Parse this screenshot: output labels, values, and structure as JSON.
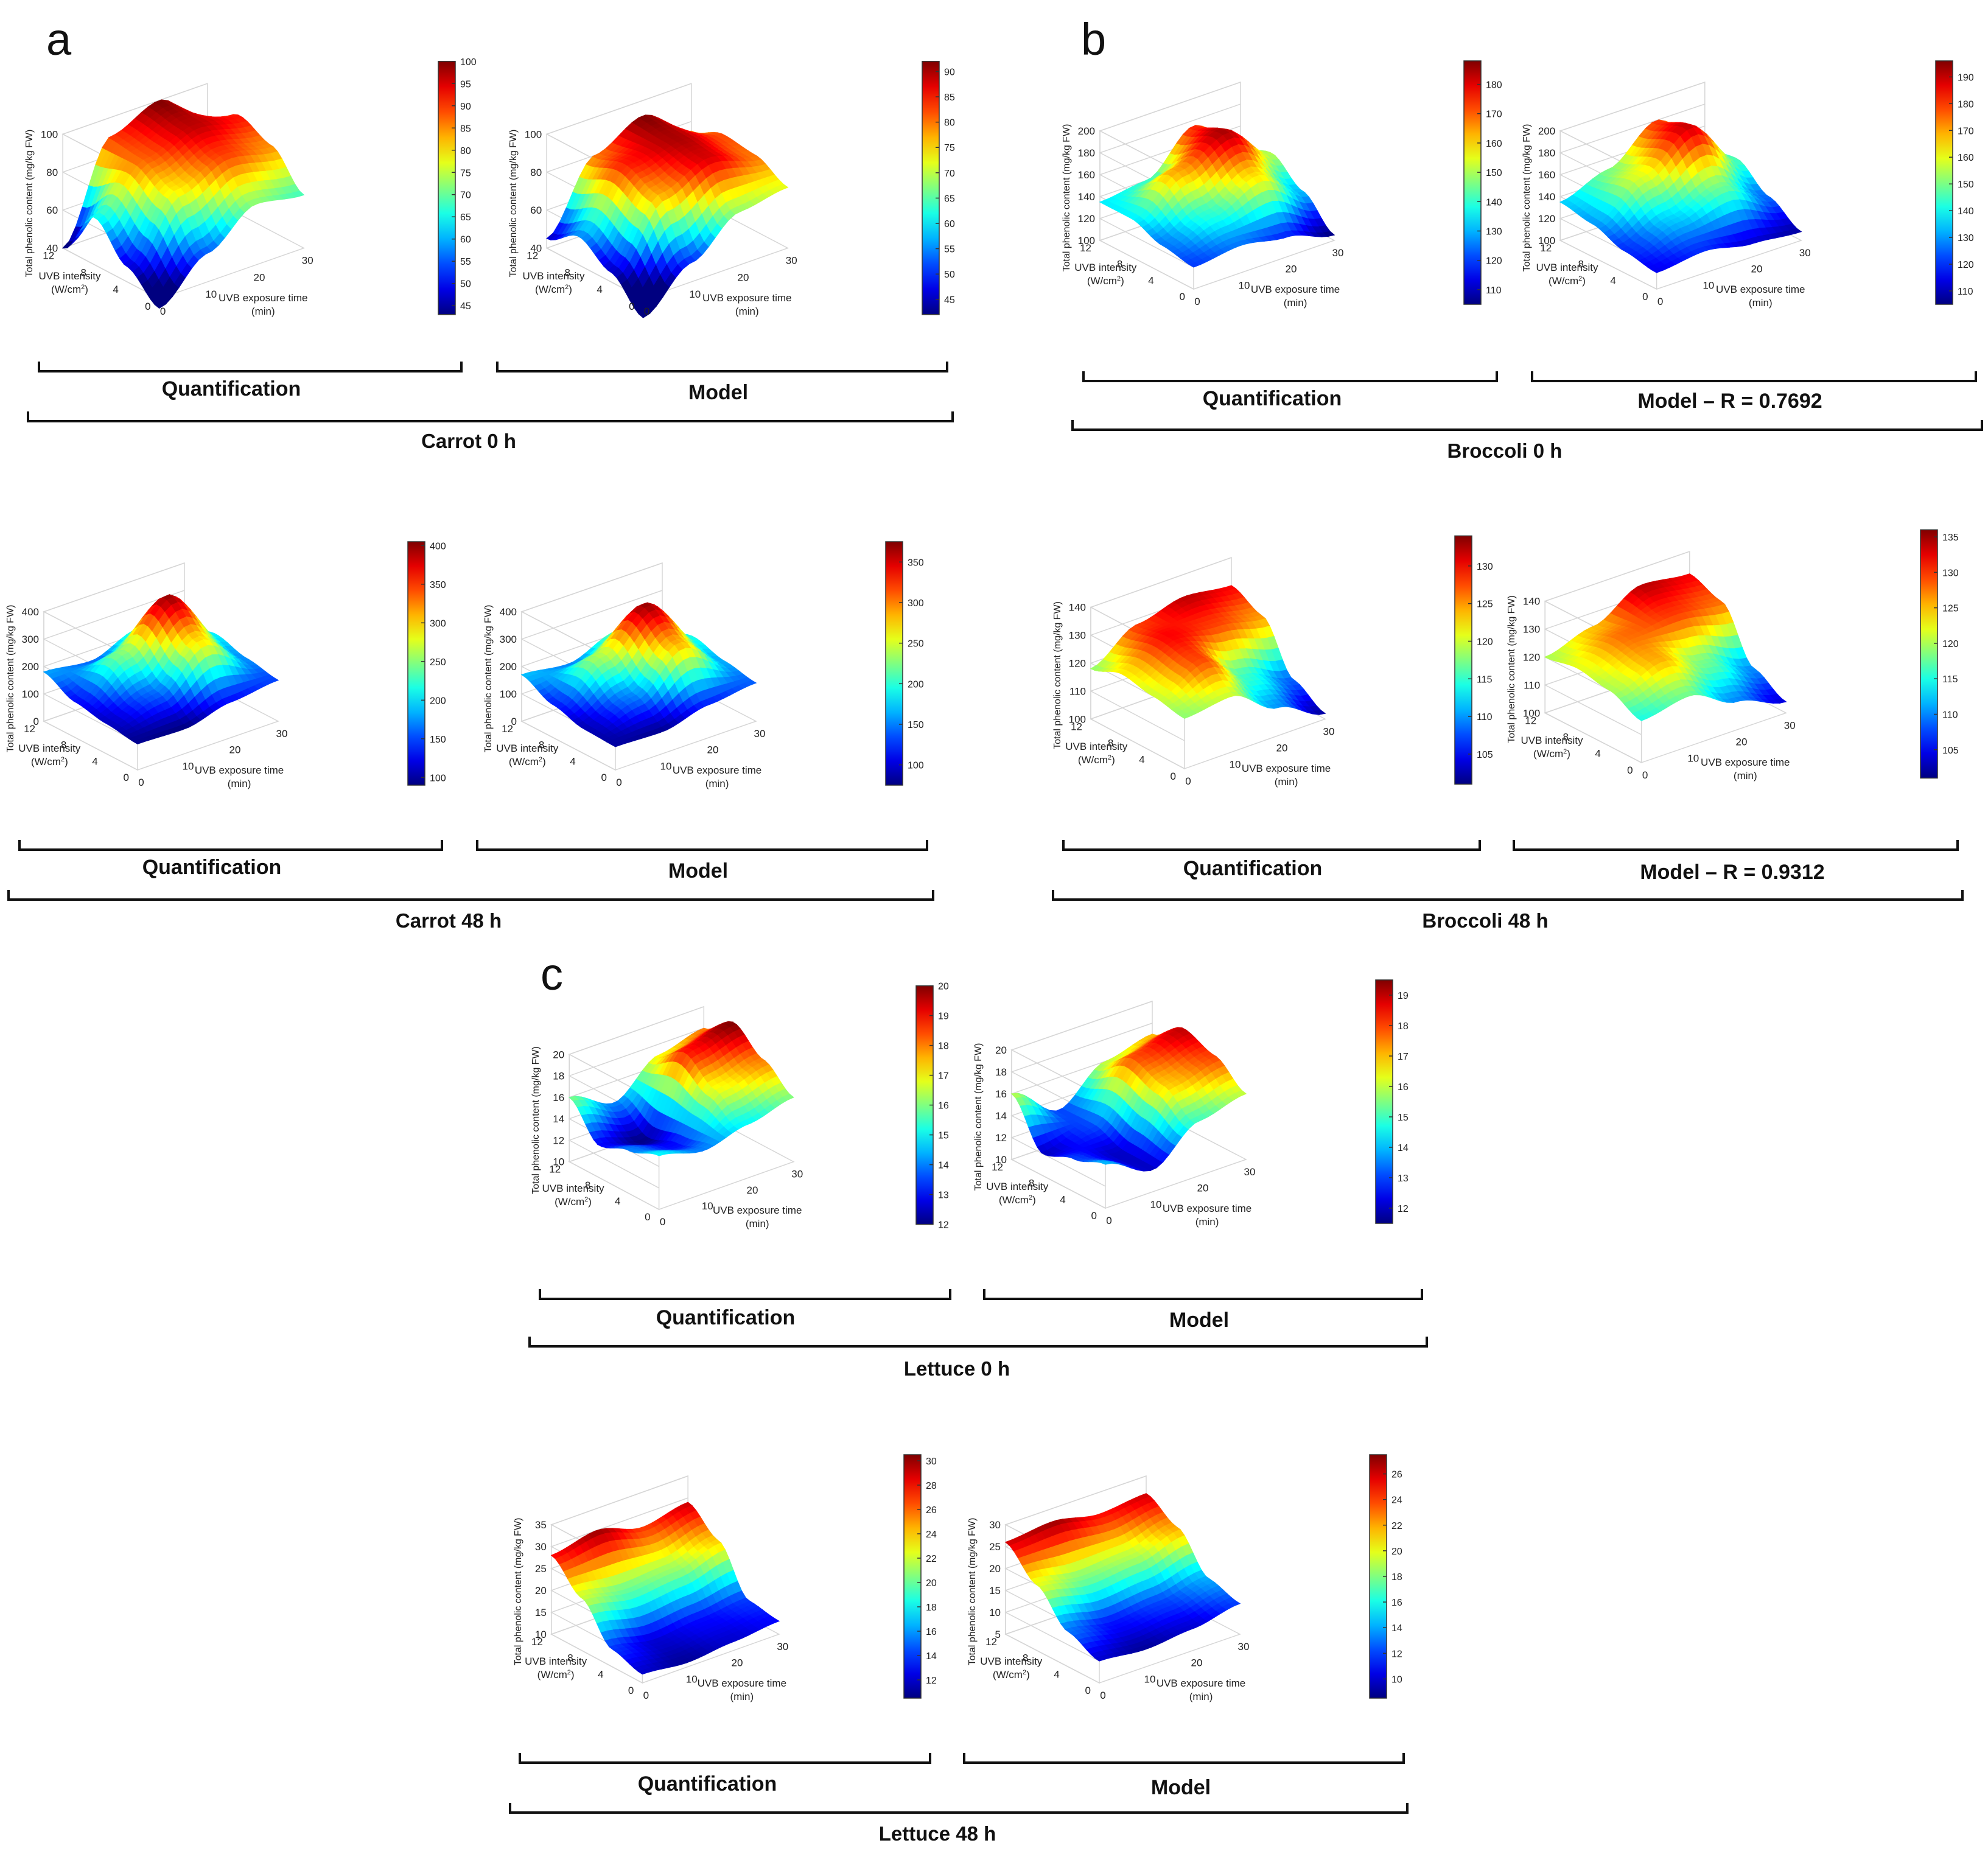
{
  "panels": {
    "a": "a",
    "b": "b",
    "c": "c"
  },
  "common_axes": {
    "zlabel": "Total phenolic content (mg/kg FW)",
    "ylabel_line1": "UVB intensity",
    "ylabel_line2": "(W/cm",
    "ylabel_sup": "2",
    "ylabel_close": ")",
    "xlabel_line1": "UVB exposure time",
    "xlabel_line2": "(min)",
    "x_ticks": [
      "0",
      "10",
      "20",
      "30"
    ],
    "y_ticks": [
      "0",
      "4",
      "8",
      "12"
    ]
  },
  "groups": [
    {
      "id": "carrot-0",
      "label": "Carrot 0 h"
    },
    {
      "id": "carrot-48",
      "label": "Carrot 48 h"
    },
    {
      "id": "broccoli-0",
      "label": "Broccoli 0 h"
    },
    {
      "id": "broccoli-48",
      "label": "Broccoli 48 h"
    },
    {
      "id": "lettuce-0",
      "label": "Lettuce 0 h"
    },
    {
      "id": "lettuce-48",
      "label": "Lettuce 48 h"
    }
  ],
  "chart_data": [
    {
      "id": "carrot-0-quant",
      "type": "surface",
      "title": "Quantification",
      "group": "Carrot 0 h",
      "xlabel": "UVB exposure time (min)",
      "ylabel": "UVB intensity (W/cm2)",
      "zlabel": "Total phenolic content (mg/kg FW)",
      "x": [
        0,
        10,
        20,
        30
      ],
      "y": [
        0,
        4,
        8,
        12
      ],
      "z": [
        [
          35,
          55,
          72,
          68
        ],
        [
          48,
          80,
          90,
          85
        ],
        [
          65,
          88,
          97,
          92
        ],
        [
          40,
          90,
          100,
          80
        ]
      ],
      "zlim": [
        40,
        100
      ],
      "z_ticks": [
        "40",
        "60",
        "80",
        "100"
      ],
      "colorbar_ticks": [
        "45",
        "50",
        "55",
        "60",
        "65",
        "70",
        "75",
        "80",
        "85",
        "90",
        "95",
        "100"
      ],
      "colorbar_range": [
        43,
        100
      ]
    },
    {
      "id": "carrot-0-model",
      "type": "surface",
      "title": "Model",
      "group": "Carrot 0 h",
      "xlabel": "UVB exposure time (min)",
      "ylabel": "UVB intensity (W/cm2)",
      "zlabel": "Total phenolic content (mg/kg FW)",
      "x": [
        0,
        10,
        20,
        30
      ],
      "y": [
        0,
        4,
        8,
        12
      ],
      "z": [
        [
          30,
          50,
          68,
          72
        ],
        [
          45,
          78,
          88,
          80
        ],
        [
          55,
          85,
          90,
          82
        ],
        [
          45,
          80,
          92,
          75
        ]
      ],
      "zlim": [
        40,
        100
      ],
      "z_ticks": [
        "40",
        "60",
        "80",
        "100"
      ],
      "colorbar_ticks": [
        "45",
        "50",
        "55",
        "60",
        "65",
        "70",
        "75",
        "80",
        "85",
        "90"
      ],
      "colorbar_range": [
        42,
        92
      ]
    },
    {
      "id": "carrot-48-quant",
      "type": "surface",
      "title": "Quantification",
      "group": "Carrot 48 h",
      "xlabel": "UVB exposure time (min)",
      "ylabel": "UVB intensity (W/cm2)",
      "zlabel": "Total phenolic content (mg/kg FW)",
      "x": [
        0,
        10,
        20,
        30
      ],
      "y": [
        0,
        4,
        8,
        12
      ],
      "z": [
        [
          95,
          90,
          130,
          150
        ],
        [
          110,
          160,
          300,
          170
        ],
        [
          130,
          250,
          400,
          200
        ],
        [
          180,
          160,
          220,
          160
        ]
      ],
      "zlim": [
        0,
        400
      ],
      "z_ticks": [
        "0",
        "100",
        "200",
        "300",
        "400"
      ],
      "colorbar_ticks": [
        "100",
        "150",
        "200",
        "250",
        "300",
        "350",
        "400"
      ],
      "colorbar_range": [
        90,
        405
      ]
    },
    {
      "id": "carrot-48-model",
      "type": "surface",
      "title": "Model",
      "group": "Carrot 48 h",
      "xlabel": "UVB exposure time (min)",
      "ylabel": "UVB intensity (W/cm2)",
      "zlabel": "Total phenolic content (mg/kg FW)",
      "x": [
        0,
        10,
        20,
        30
      ],
      "y": [
        0,
        4,
        8,
        12
      ],
      "z": [
        [
          85,
          80,
          120,
          140
        ],
        [
          90,
          150,
          290,
          160
        ],
        [
          120,
          240,
          370,
          190
        ],
        [
          170,
          150,
          210,
          150
        ]
      ],
      "zlim": [
        0,
        400
      ],
      "z_ticks": [
        "0",
        "100",
        "200",
        "300",
        "400"
      ],
      "colorbar_ticks": [
        "100",
        "150",
        "200",
        "250",
        "300",
        "350"
      ],
      "colorbar_range": [
        75,
        375
      ]
    },
    {
      "id": "broccoli-0-quant",
      "type": "surface",
      "title": "Quantification",
      "group": "Broccoli 0 h",
      "xlabel": "UVB exposure time (min)",
      "ylabel": "UVB intensity (W/cm2)",
      "zlabel": "Total phenolic content (mg/kg FW)",
      "x": [
        0,
        10,
        20,
        30
      ],
      "y": [
        0,
        4,
        8,
        12
      ],
      "z": [
        [
          120,
          125,
          118,
          105
        ],
        [
          125,
          140,
          160,
          130
        ],
        [
          135,
          165,
          185,
          150
        ],
        [
          135,
          140,
          175,
          140
        ]
      ],
      "zlim": [
        100,
        200
      ],
      "z_ticks": [
        "100",
        "120",
        "140",
        "160",
        "180",
        "200"
      ],
      "colorbar_ticks": [
        "110",
        "120",
        "130",
        "140",
        "150",
        "160",
        "170",
        "180"
      ],
      "colorbar_range": [
        105,
        188
      ]
    },
    {
      "id": "broccoli-0-model",
      "type": "surface",
      "title": "Model – R  = 0.7692",
      "group": "Broccoli 0 h",
      "xlabel": "UVB exposure time (min)",
      "ylabel": "UVB intensity (W/cm2)",
      "zlabel": "Total phenolic content (mg/kg FW)",
      "x": [
        0,
        10,
        20,
        30
      ],
      "y": [
        0,
        4,
        8,
        12
      ],
      "z": [
        [
          115,
          120,
          112,
          108
        ],
        [
          120,
          135,
          150,
          125
        ],
        [
          130,
          160,
          190,
          145
        ],
        [
          135,
          150,
          180,
          140
        ]
      ],
      "zlim": [
        100,
        200
      ],
      "z_ticks": [
        "100",
        "120",
        "140",
        "160",
        "180",
        "200"
      ],
      "colorbar_ticks": [
        "110",
        "120",
        "130",
        "140",
        "150",
        "160",
        "170",
        "180",
        "190"
      ],
      "colorbar_range": [
        105,
        196
      ]
    },
    {
      "id": "broccoli-48-quant",
      "type": "surface",
      "title": "Quantification",
      "group": "Broccoli 48 h",
      "xlabel": "UVB exposure time (min)",
      "ylabel": "UVB intensity (W/cm2)",
      "zlabel": "Total phenolic content (mg/kg FW)",
      "x": [
        0,
        10,
        20,
        30
      ],
      "y": [
        0,
        4,
        8,
        12
      ],
      "z": [
        [
          118,
          120,
          110,
          102
        ],
        [
          120,
          128,
          115,
          108
        ],
        [
          122,
          130,
          128,
          125
        ],
        [
          118,
          128,
          132,
          130
        ]
      ],
      "zlim": [
        100,
        140
      ],
      "z_ticks": [
        "100",
        "110",
        "120",
        "130",
        "140"
      ],
      "colorbar_ticks": [
        "105",
        "110",
        "115",
        "120",
        "125",
        "130"
      ],
      "colorbar_range": [
        101,
        134
      ]
    },
    {
      "id": "broccoli-48-model",
      "type": "surface",
      "title": "Model – R  = 0.9312",
      "group": "Broccoli 48 h",
      "xlabel": "UVB exposure time (min)",
      "ylabel": "UVB intensity (W/cm2)",
      "zlabel": "Total phenolic content (mg/kg FW)",
      "x": [
        0,
        10,
        20,
        30
      ],
      "y": [
        0,
        4,
        8,
        12
      ],
      "z": [
        [
          115,
          118,
          110,
          104
        ],
        [
          120,
          126,
          118,
          110
        ],
        [
          122,
          128,
          130,
          128
        ],
        [
          120,
          125,
          134,
          132
        ]
      ],
      "zlim": [
        100,
        140
      ],
      "z_ticks": [
        "100",
        "110",
        "120",
        "130",
        "140"
      ],
      "colorbar_ticks": [
        "105",
        "110",
        "115",
        "120",
        "125",
        "130",
        "135"
      ],
      "colorbar_range": [
        101,
        136
      ]
    },
    {
      "id": "lettuce-0-quant",
      "type": "surface",
      "title": "Quantification",
      "group": "Lettuce 0 h",
      "xlabel": "UVB exposure time (min)",
      "ylabel": "UVB intensity (W/cm2)",
      "zlabel": "Total phenolic content (mg/kg FW)",
      "x": [
        0,
        10,
        20,
        30
      ],
      "y": [
        0,
        4,
        8,
        12
      ],
      "z": [
        [
          15,
          14,
          15,
          16
        ],
        [
          14,
          13,
          17,
          18
        ],
        [
          13,
          12,
          19,
          20
        ],
        [
          16,
          14,
          17,
          18
        ]
      ],
      "zlim": [
        10,
        20
      ],
      "z_ticks": [
        "10",
        "12",
        "14",
        "16",
        "18",
        "20"
      ],
      "colorbar_ticks": [
        "12",
        "13",
        "14",
        "15",
        "16",
        "17",
        "18",
        "19",
        "20"
      ],
      "colorbar_range": [
        12,
        20
      ]
    },
    {
      "id": "lettuce-0-model",
      "type": "surface",
      "title": "Model",
      "group": "Lettuce 0 h",
      "xlabel": "UVB exposure time (min)",
      "ylabel": "UVB intensity (W/cm2)",
      "zlabel": "Total phenolic content (mg/kg FW)",
      "x": [
        0,
        10,
        20,
        30
      ],
      "y": [
        0,
        4,
        8,
        12
      ],
      "z": [
        [
          14,
          12,
          15,
          16
        ],
        [
          13,
          12,
          17,
          18
        ],
        [
          12,
          13,
          18,
          19
        ],
        [
          16,
          13,
          16,
          17
        ]
      ],
      "zlim": [
        10,
        20
      ],
      "z_ticks": [
        "10",
        "12",
        "14",
        "16",
        "18",
        "20"
      ],
      "colorbar_ticks": [
        "12",
        "13",
        "14",
        "15",
        "16",
        "17",
        "18",
        "19"
      ],
      "colorbar_range": [
        11.5,
        19.5
      ]
    },
    {
      "id": "lettuce-48-quant",
      "type": "surface",
      "title": "Quantification",
      "group": "Lettuce 48 h",
      "xlabel": "UVB exposure time (min)",
      "ylabel": "UVB intensity (W/cm2)",
      "zlabel": "Total phenolic content (mg/kg FW)",
      "x": [
        0,
        10,
        20,
        30
      ],
      "y": [
        0,
        4,
        8,
        12
      ],
      "z": [
        [
          12,
          11,
          12,
          13
        ],
        [
          14,
          12,
          13,
          14
        ],
        [
          22,
          20,
          21,
          24
        ],
        [
          28,
          30,
          27,
          29
        ]
      ],
      "zlim": [
        10,
        35
      ],
      "z_ticks": [
        "10",
        "15",
        "20",
        "25",
        "30",
        "35"
      ],
      "colorbar_ticks": [
        "12",
        "14",
        "16",
        "18",
        "20",
        "22",
        "24",
        "26",
        "28",
        "30"
      ],
      "colorbar_range": [
        10.5,
        30.5
      ]
    },
    {
      "id": "lettuce-48-model",
      "type": "surface",
      "title": "Model",
      "group": "Lettuce 48 h",
      "xlabel": "UVB exposure time (min)",
      "ylabel": "UVB intensity (W/cm2)",
      "zlabel": "Total phenolic content (mg/kg FW)",
      "x": [
        0,
        10,
        20,
        30
      ],
      "y": [
        0,
        4,
        8,
        12
      ],
      "z": [
        [
          10,
          9,
          10,
          12
        ],
        [
          13,
          11,
          12,
          14
        ],
        [
          20,
          18,
          19,
          22
        ],
        [
          26,
          27,
          25,
          26
        ]
      ],
      "zlim": [
        5,
        30
      ],
      "z_ticks": [
        "5",
        "10",
        "15",
        "20",
        "25",
        "30"
      ],
      "colorbar_ticks": [
        "10",
        "12",
        "14",
        "16",
        "18",
        "20",
        "22",
        "24",
        "26"
      ],
      "colorbar_range": [
        8.5,
        27.5
      ]
    }
  ]
}
